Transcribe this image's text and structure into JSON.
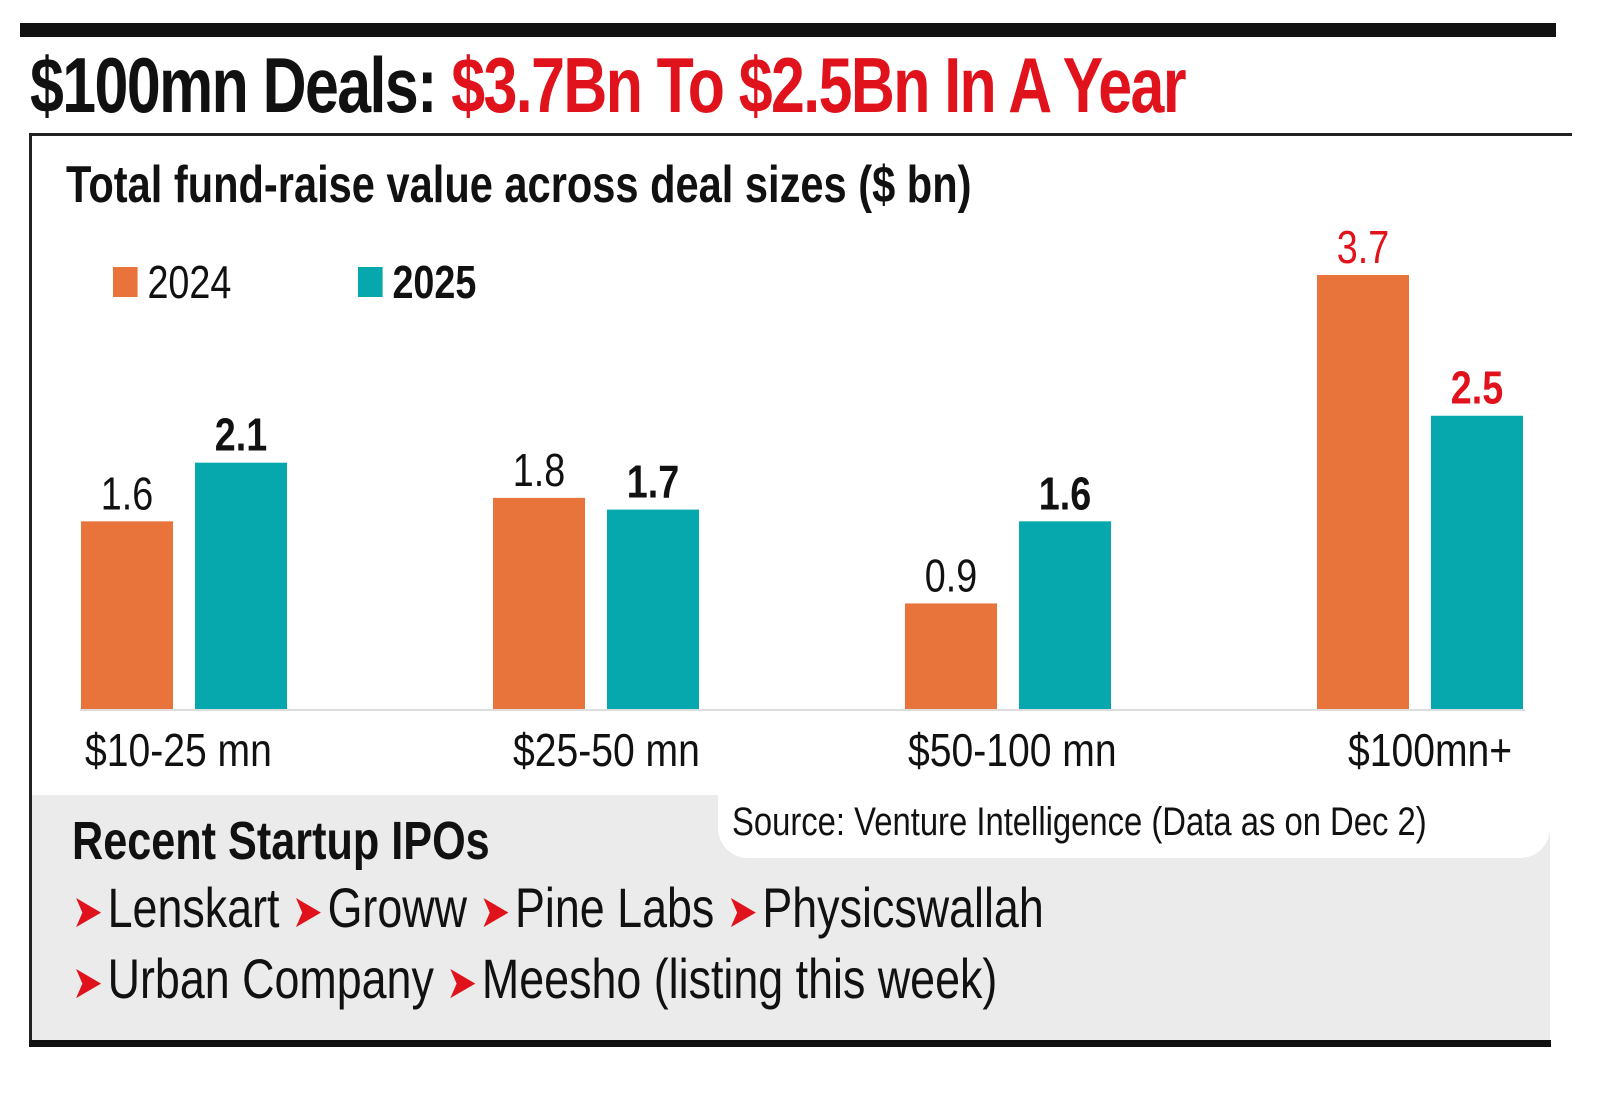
{
  "headline": {
    "black": "$100mn Deals:",
    "red": "$3.7Bn To $2.5Bn In A Year"
  },
  "colors": {
    "series_2024": "#e8743b",
    "series_2025": "#07a8ad",
    "accent_red": "#e0121b",
    "panel_grey": "#ebebeb"
  },
  "chart_data": {
    "type": "bar",
    "title": "Total fund-raise value across deal sizes ($ bn)",
    "categories": [
      "$10-25 mn",
      "$25-50 mn",
      "$50-100 mn",
      "$100mn+"
    ],
    "series": [
      {
        "name": "2024",
        "values": [
          1.6,
          1.8,
          0.9,
          3.7
        ]
      },
      {
        "name": "2025",
        "values": [
          2.1,
          1.7,
          1.6,
          2.5
        ]
      }
    ],
    "ylim": [
      0,
      3.7
    ],
    "grid": false,
    "legend": "top-left",
    "xlabel": "",
    "ylabel": ""
  },
  "source": "Source: Venture Intelligence (Data as on Dec 2)",
  "ipos": {
    "title": "Recent Startup IPOs",
    "line1": [
      "Lenskart",
      "Groww",
      "Pine Labs",
      "Physicswallah"
    ],
    "line2": [
      "Urban Company",
      "Meesho (listing this week)"
    ],
    "arrow_icon": "red-chevron-right"
  }
}
